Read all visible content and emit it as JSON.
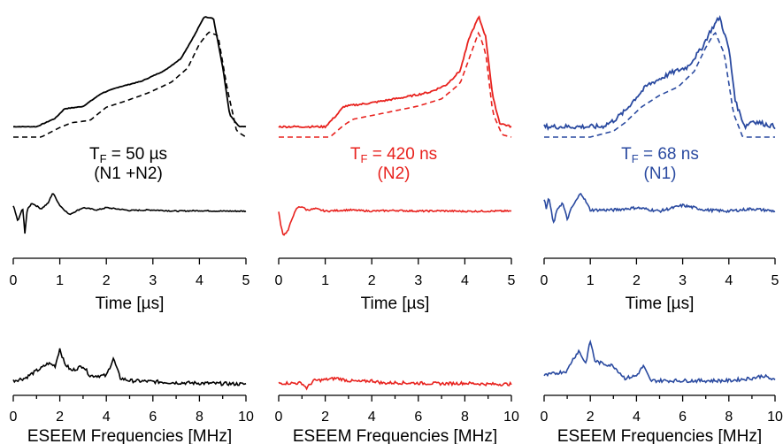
{
  "columns": [
    {
      "id": "col1",
      "color": "#000000",
      "label": {
        "prefix": "T",
        "sub": "F",
        "value": " = 50 µs",
        "sample": "(N1 +N2)"
      },
      "edfs": {
        "experiment": [
          [
            0,
            0.05
          ],
          [
            0.1,
            0.05
          ],
          [
            0.18,
            0.12
          ],
          [
            0.22,
            0.2
          ],
          [
            0.3,
            0.22
          ],
          [
            0.38,
            0.33
          ],
          [
            0.45,
            0.38
          ],
          [
            0.55,
            0.43
          ],
          [
            0.65,
            0.52
          ],
          [
            0.72,
            0.62
          ],
          [
            0.78,
            0.82
          ],
          [
            0.82,
            0.97
          ],
          [
            0.86,
            0.96
          ],
          [
            0.9,
            0.55
          ],
          [
            0.93,
            0.15
          ],
          [
            0.97,
            0.05
          ],
          [
            1,
            0.05
          ]
        ],
        "simulation": [
          [
            0,
            0.0
          ],
          [
            0.12,
            0.0
          ],
          [
            0.2,
            0.08
          ],
          [
            0.25,
            0.12
          ],
          [
            0.33,
            0.14
          ],
          [
            0.4,
            0.25
          ],
          [
            0.48,
            0.3
          ],
          [
            0.58,
            0.37
          ],
          [
            0.68,
            0.46
          ],
          [
            0.75,
            0.58
          ],
          [
            0.8,
            0.78
          ],
          [
            0.84,
            0.88
          ],
          [
            0.88,
            0.85
          ],
          [
            0.92,
            0.4
          ],
          [
            0.96,
            0.05
          ],
          [
            1,
            0.0
          ]
        ]
      },
      "eseem": {
        "x": [
          0,
          0.1,
          0.2,
          0.25,
          0.3,
          0.4,
          0.6,
          0.75,
          0.85,
          1.0,
          1.2,
          1.5,
          1.8,
          2.0,
          2.5,
          3,
          3.5,
          4,
          4.5,
          5
        ],
        "y": [
          0.3,
          -0.4,
          0.2,
          -0.9,
          0.1,
          0.4,
          0.15,
          0.4,
          0.85,
          0.3,
          -0.1,
          0.2,
          0.1,
          0.2,
          0.08,
          0.1,
          0.05,
          0.07,
          0.05,
          0.05
        ]
      },
      "fft": {
        "x": [
          0,
          0.5,
          1,
          1.2,
          1.5,
          1.8,
          2,
          2.2,
          2.5,
          3,
          3.3,
          4,
          4.3,
          4.6,
          5,
          6,
          7,
          8,
          9,
          10
        ],
        "y": [
          0.1,
          0.15,
          0.3,
          0.35,
          0.45,
          0.4,
          0.75,
          0.45,
          0.3,
          0.4,
          0.2,
          0.2,
          0.55,
          0.15,
          0.1,
          0.08,
          0.06,
          0.05,
          0.04,
          0.03
        ]
      }
    },
    {
      "id": "col2",
      "color": "#e8221e",
      "label": {
        "prefix": "T",
        "sub": "F",
        "value": " = 420 ns",
        "sample": "(N2)"
      },
      "edfs": {
        "experiment": [
          [
            0,
            0.05
          ],
          [
            0.2,
            0.05
          ],
          [
            0.25,
            0.15
          ],
          [
            0.28,
            0.22
          ],
          [
            0.4,
            0.25
          ],
          [
            0.55,
            0.3
          ],
          [
            0.65,
            0.34
          ],
          [
            0.72,
            0.4
          ],
          [
            0.78,
            0.52
          ],
          [
            0.82,
            0.8
          ],
          [
            0.86,
            0.97
          ],
          [
            0.89,
            0.8
          ],
          [
            0.92,
            0.3
          ],
          [
            0.95,
            0.08
          ],
          [
            1,
            0.05
          ]
        ],
        "simulation": [
          [
            0,
            0.0
          ],
          [
            0.22,
            0.0
          ],
          [
            0.28,
            0.1
          ],
          [
            0.32,
            0.15
          ],
          [
            0.45,
            0.2
          ],
          [
            0.6,
            0.26
          ],
          [
            0.7,
            0.32
          ],
          [
            0.78,
            0.45
          ],
          [
            0.83,
            0.72
          ],
          [
            0.86,
            0.88
          ],
          [
            0.89,
            0.7
          ],
          [
            0.92,
            0.2
          ],
          [
            0.96,
            0.02
          ],
          [
            1,
            0.0
          ]
        ]
      },
      "eseem": {
        "x": [
          0,
          0.05,
          0.1,
          0.2,
          0.3,
          0.4,
          0.5,
          0.6,
          0.8,
          1.0,
          1.5,
          2,
          2.5,
          3,
          3.5,
          4,
          4.5,
          5
        ],
        "y": [
          0.0,
          -0.6,
          -1.0,
          -0.8,
          -0.2,
          0.2,
          0.25,
          0.1,
          0.15,
          0.05,
          0.1,
          0.05,
          0.08,
          0.05,
          0.06,
          0.04,
          0.05,
          0.05
        ]
      },
      "fft": {
        "x": [
          0,
          0.5,
          1,
          1.2,
          1.5,
          2,
          2.5,
          3,
          3.5,
          4,
          4.5,
          5,
          6,
          7,
          8,
          9,
          10
        ],
        "y": [
          0.05,
          0.05,
          0.05,
          -0.05,
          0.1,
          0.12,
          0.15,
          0.1,
          0.08,
          0.1,
          0.05,
          0.06,
          0.05,
          0.04,
          0.05,
          0.03,
          0.03
        ]
      }
    },
    {
      "id": "col3",
      "color": "#2a4aa0",
      "label": {
        "prefix": "T",
        "sub": "F",
        "value": " = 68 ns",
        "sample": "(N1)"
      },
      "edfs": {
        "experiment": [
          [
            0,
            0.05
          ],
          [
            0.15,
            0.05
          ],
          [
            0.25,
            0.05
          ],
          [
            0.3,
            0.1
          ],
          [
            0.35,
            0.18
          ],
          [
            0.4,
            0.3
          ],
          [
            0.45,
            0.4
          ],
          [
            0.5,
            0.45
          ],
          [
            0.55,
            0.5
          ],
          [
            0.62,
            0.55
          ],
          [
            0.68,
            0.7
          ],
          [
            0.72,
            0.85
          ],
          [
            0.76,
            0.97
          ],
          [
            0.8,
            0.7
          ],
          [
            0.83,
            0.25
          ],
          [
            0.87,
            0.05
          ],
          [
            0.9,
            0.1
          ],
          [
            1,
            0.05
          ]
        ],
        "simulation": [
          [
            0,
            0.0
          ],
          [
            0.2,
            0.0
          ],
          [
            0.3,
            0.05
          ],
          [
            0.35,
            0.12
          ],
          [
            0.42,
            0.25
          ],
          [
            0.5,
            0.35
          ],
          [
            0.58,
            0.42
          ],
          [
            0.65,
            0.55
          ],
          [
            0.7,
            0.75
          ],
          [
            0.74,
            0.88
          ],
          [
            0.78,
            0.7
          ],
          [
            0.82,
            0.2
          ],
          [
            0.86,
            0.0
          ],
          [
            1,
            0.0
          ]
        ]
      },
      "eseem": {
        "x": [
          0,
          0.05,
          0.1,
          0.2,
          0.3,
          0.4,
          0.5,
          0.6,
          0.8,
          1,
          1.5,
          2,
          2.5,
          3,
          3.5,
          4,
          4.5,
          5
        ],
        "y": [
          0.6,
          0.1,
          0.7,
          -0.5,
          0.2,
          0.4,
          -0.3,
          0.2,
          0.85,
          0.1,
          0.1,
          0.2,
          0.05,
          0.3,
          0.1,
          0.05,
          0.15,
          0.05
        ]
      },
      "fft": {
        "x": [
          0,
          0.5,
          1,
          1.2,
          1.5,
          1.8,
          2,
          2.2,
          2.5,
          3,
          3.5,
          4,
          4.3,
          4.6,
          5,
          6,
          7,
          8,
          9,
          9.5,
          10
        ],
        "y": [
          0.2,
          0.25,
          0.3,
          0.5,
          0.7,
          0.45,
          0.9,
          0.5,
          0.45,
          0.4,
          0.15,
          0.2,
          0.4,
          0.1,
          0.1,
          0.1,
          0.1,
          0.1,
          0.15,
          0.2,
          0.1
        ]
      }
    }
  ],
  "axes": {
    "time": {
      "ticks": [
        "0",
        "1",
        "2",
        "3",
        "4",
        "5"
      ],
      "label": "Time [µs]"
    },
    "freq": {
      "ticks": [
        "0",
        "2",
        "4",
        "6",
        "8",
        "10"
      ],
      "label": "ESEEM Frequencies [MHz]"
    }
  },
  "chart_data": [
    {
      "type": "line",
      "panel": "col1-edfs",
      "series": [
        {
          "x": [
            0,
            0.1,
            0.18,
            0.22,
            0.3,
            0.38,
            0.45,
            0.55,
            0.65,
            0.72,
            0.78,
            0.82,
            0.86,
            0.9,
            0.93,
            0.97,
            1
          ],
          "values": [
            0.05,
            0.05,
            0.12,
            0.2,
            0.22,
            0.33,
            0.38,
            0.43,
            0.52,
            0.62,
            0.82,
            0.97,
            0.96,
            0.55,
            0.15,
            0.05,
            0.05
          ]
        }
      ]
    },
    {
      "type": "line",
      "panel": "col1-eseem",
      "xlim": [
        0,
        5
      ]
    },
    {
      "type": "line",
      "panel": "col1-fft",
      "xlim": [
        0,
        10
      ]
    },
    {
      "type": "line",
      "panel": "col2-edfs"
    },
    {
      "type": "line",
      "panel": "col2-eseem",
      "xlim": [
        0,
        5
      ]
    },
    {
      "type": "line",
      "panel": "col2-fft",
      "xlim": [
        0,
        10
      ]
    },
    {
      "type": "line",
      "panel": "col3-edfs"
    },
    {
      "type": "line",
      "panel": "col3-eseem",
      "xlim": [
        0,
        5
      ]
    },
    {
      "type": "line",
      "panel": "col3-fft",
      "xlim": [
        0,
        10
      ]
    }
  ]
}
